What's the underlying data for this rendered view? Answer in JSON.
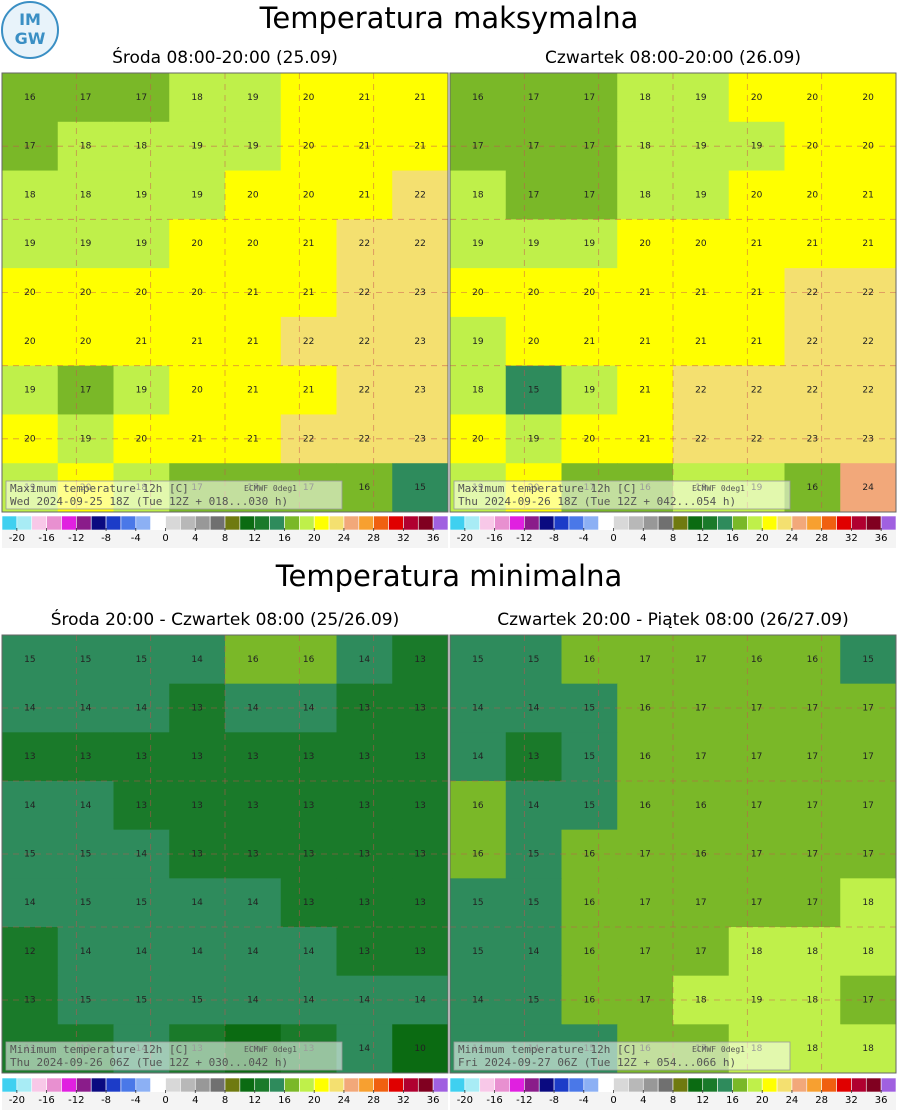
{
  "logo": [
    "IM",
    "GW"
  ],
  "colorbar": {
    "lim": [
      -22,
      38
    ],
    "colors": [
      "#3fd0f0",
      "#a8ecf5",
      "#f8c8e8",
      "#e890d0",
      "#e020e0",
      "#8a1c8a",
      "#0a0a80",
      "#1c3cc8",
      "#4a78e8",
      "#8cb0f4",
      "#ffffff",
      "#d8d8d8",
      "#b8b8b8",
      "#989898",
      "#707070",
      "#6f7a10",
      "#0b6b12",
      "#1a7a2a",
      "#2e8b5c",
      "#7ab828",
      "#bff04a",
      "#ffff00",
      "#f4e070",
      "#f2a87a",
      "#f7a030",
      "#f06010",
      "#e00000",
      "#b00030",
      "#800020",
      "#a060e0"
    ],
    "ticks": [
      -20,
      -16,
      -12,
      -8,
      -4,
      0,
      4,
      8,
      12,
      16,
      20,
      24,
      28,
      32,
      36
    ]
  },
  "sections": [
    {
      "title": "Temperatura maksymalna",
      "panels": [
        {
          "subtitle": "Środa 08:00-20:00 (25.09)",
          "info_title": "Maximum temperature 12h [C]",
          "info_model": "ECMWF 0deg1",
          "info_time": "Wed 2024-09-25 18Z (Tue 12Z + 018...030 h)",
          "grid": [
            [
              16,
              17,
              17,
              18,
              19,
              20,
              21,
              21
            ],
            [
              17,
              18,
              18,
              19,
              19,
              20,
              21,
              21
            ],
            [
              18,
              18,
              19,
              19,
              20,
              20,
              21,
              22
            ],
            [
              19,
              19,
              19,
              20,
              20,
              21,
              22,
              22
            ],
            [
              20,
              20,
              20,
              20,
              21,
              21,
              22,
              23
            ],
            [
              20,
              20,
              21,
              21,
              21,
              22,
              22,
              23
            ],
            [
              19,
              17,
              19,
              20,
              21,
              21,
              22,
              23
            ],
            [
              20,
              19,
              20,
              21,
              21,
              22,
              22,
              23
            ],
            [
              19,
              20,
              18,
              17,
              17,
              17,
              16,
              15
            ]
          ]
        },
        {
          "subtitle": "Czwartek 08:00-20:00 (26.09)",
          "info_title": "Maximum temperature 12h [C]",
          "info_model": "ECMWF 0deg1",
          "info_time": "Thu 2024-09-26 18Z (Tue 12Z + 042...054 h)",
          "grid": [
            [
              16,
              17,
              17,
              18,
              19,
              20,
              20,
              20
            ],
            [
              17,
              17,
              17,
              18,
              19,
              19,
              20,
              20
            ],
            [
              18,
              17,
              17,
              18,
              19,
              20,
              20,
              21
            ],
            [
              19,
              19,
              19,
              20,
              20,
              21,
              21,
              21
            ],
            [
              20,
              20,
              20,
              21,
              21,
              21,
              22,
              22
            ],
            [
              19,
              20,
              21,
              21,
              21,
              21,
              22,
              22
            ],
            [
              18,
              15,
              19,
              21,
              22,
              22,
              22,
              22
            ],
            [
              20,
              19,
              20,
              21,
              22,
              22,
              23,
              23
            ],
            [
              19,
              20,
              17,
              16,
              18,
              19,
              16,
              24
            ]
          ]
        }
      ]
    },
    {
      "title": "Temperatura minimalna",
      "panels": [
        {
          "subtitle": "Środa 20:00 - Czwartek 08:00 (25/26.09)",
          "info_title": "Minimum temperature 12h [C]",
          "info_model": "ECMWF 0deg1",
          "info_time": "Thu 2024-09-26 06Z (Tue 12Z + 030...042 h)",
          "grid": [
            [
              15,
              15,
              15,
              14,
              16,
              16,
              14,
              13
            ],
            [
              14,
              14,
              14,
              13,
              14,
              14,
              13,
              13
            ],
            [
              13,
              13,
              13,
              13,
              13,
              13,
              13,
              13
            ],
            [
              14,
              14,
              13,
              13,
              13,
              13,
              13,
              13
            ],
            [
              15,
              15,
              14,
              13,
              13,
              13,
              13,
              13
            ],
            [
              14,
              15,
              15,
              14,
              14,
              13,
              13,
              13
            ],
            [
              12,
              14,
              14,
              14,
              14,
              14,
              13,
              13
            ],
            [
              13,
              15,
              15,
              15,
              14,
              14,
              14,
              14
            ],
            [
              12,
              13,
              14,
              13,
              10,
              13,
              14,
              10
            ]
          ]
        },
        {
          "subtitle": "Czwartek 20:00 - Piątek 08:00 (26/27.09)",
          "info_title": "Minimum temperature 12h [C]",
          "info_model": "ECMWF 0deg1",
          "info_time": "Fri 2024-09-27 06Z (Tue 12Z + 054...066 h)",
          "grid": [
            [
              15,
              15,
              16,
              17,
              17,
              16,
              16,
              15
            ],
            [
              14,
              14,
              15,
              16,
              17,
              17,
              17,
              17
            ],
            [
              14,
              13,
              15,
              16,
              17,
              17,
              17,
              17
            ],
            [
              16,
              14,
              15,
              16,
              16,
              17,
              17,
              17
            ],
            [
              16,
              15,
              16,
              17,
              16,
              17,
              17,
              17
            ],
            [
              15,
              15,
              16,
              17,
              17,
              17,
              17,
              18
            ],
            [
              15,
              14,
              16,
              17,
              17,
              18,
              18,
              18
            ],
            [
              14,
              15,
              16,
              17,
              18,
              19,
              18,
              17
            ],
            [
              14,
              14,
              15,
              16,
              17,
              18,
              18,
              18
            ]
          ]
        }
      ]
    }
  ]
}
